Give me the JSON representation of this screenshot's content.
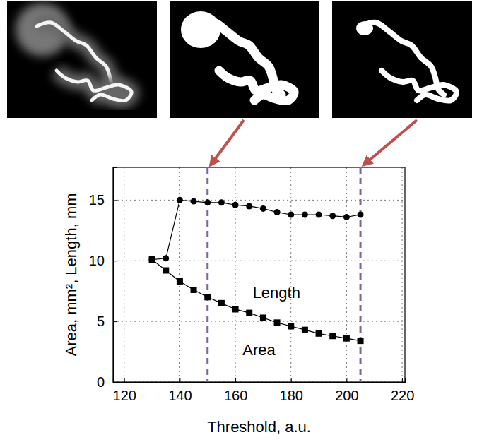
{
  "chart_data": {
    "type": "line",
    "x": [
      130,
      135,
      140,
      145,
      150,
      155,
      160,
      165,
      170,
      175,
      180,
      185,
      190,
      195,
      200,
      205
    ],
    "series": [
      {
        "name": "Length",
        "color": "#000000",
        "marker": "circle",
        "values": [
          10.1,
          10.2,
          15.0,
          14.9,
          14.8,
          14.8,
          14.6,
          14.5,
          14.3,
          14.0,
          13.8,
          13.8,
          13.8,
          13.7,
          13.6,
          13.8
        ]
      },
      {
        "name": "Area",
        "color": "#000000",
        "marker": "square",
        "values": [
          10.1,
          9.2,
          8.3,
          7.6,
          7.0,
          6.5,
          6.0,
          5.7,
          5.3,
          4.9,
          4.6,
          4.3,
          4.0,
          3.8,
          3.6,
          3.4
        ]
      }
    ],
    "xlim": [
      116,
      221
    ],
    "ylim": [
      0,
      17.7
    ],
    "xticks": [
      120,
      140,
      160,
      180,
      200,
      220
    ],
    "yticks": [
      0,
      5,
      10,
      15
    ],
    "xlabel": "Threshold, a.u.",
    "ylabel": "Area, mm², Length, mm",
    "grid": true,
    "vlines": [
      150,
      205
    ]
  }
}
